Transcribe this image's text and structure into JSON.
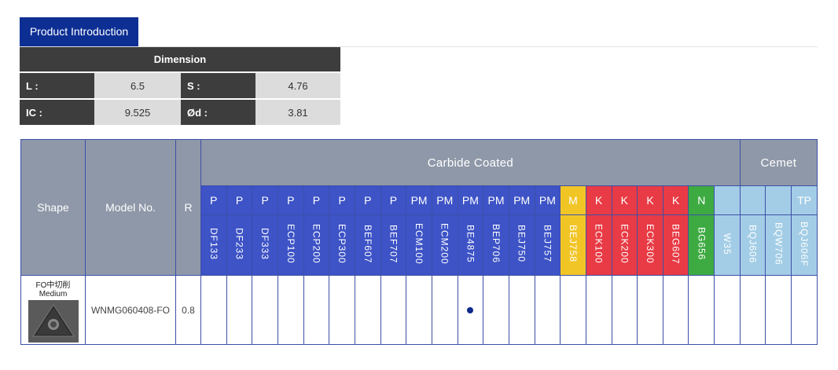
{
  "tab": {
    "label": "Product Introduction"
  },
  "dimension": {
    "title": "Dimension",
    "rows": [
      {
        "label1": "L :",
        "value1": "6.5",
        "label2": "S :",
        "value2": "4.76"
      },
      {
        "label1": "IC :",
        "value1": "9.525",
        "label2": "Ød :",
        "value2": "3.81"
      }
    ]
  },
  "grades": {
    "headers": {
      "shape": "Shape",
      "model": "Model No.",
      "r": "R",
      "carbide": "Carbide Coated",
      "cermet": "Cemet"
    },
    "columns": [
      {
        "cls": "P",
        "grade": "DF133",
        "color": "#3d53c6"
      },
      {
        "cls": "P",
        "grade": "DF233",
        "color": "#3d53c6"
      },
      {
        "cls": "P",
        "grade": "DF333",
        "color": "#3d53c6"
      },
      {
        "cls": "P",
        "grade": "ECP100",
        "color": "#3d53c6"
      },
      {
        "cls": "P",
        "grade": "ECP200",
        "color": "#3d53c6"
      },
      {
        "cls": "P",
        "grade": "ECP300",
        "color": "#3d53c6"
      },
      {
        "cls": "P",
        "grade": "BEF607",
        "color": "#3d53c6"
      },
      {
        "cls": "P",
        "grade": "BEF707",
        "color": "#3d53c6"
      },
      {
        "cls": "PM",
        "grade": "ECM100",
        "color": "#3d53c6"
      },
      {
        "cls": "PM",
        "grade": "ECM200",
        "color": "#3d53c6"
      },
      {
        "cls": "PM",
        "grade": "BE4875",
        "color": "#3d53c6"
      },
      {
        "cls": "PM",
        "grade": "BEP706",
        "color": "#3d53c6"
      },
      {
        "cls": "PM",
        "grade": "BEJ750",
        "color": "#3d53c6"
      },
      {
        "cls": "PM",
        "grade": "BEJ757",
        "color": "#3d53c6"
      },
      {
        "cls": "M",
        "grade": "BEJ758",
        "color": "#f2c527"
      },
      {
        "cls": "K",
        "grade": "ECK100",
        "color": "#e83b45"
      },
      {
        "cls": "K",
        "grade": "ECK200",
        "color": "#e83b45"
      },
      {
        "cls": "K",
        "grade": "ECK300",
        "color": "#e83b45"
      },
      {
        "cls": "K",
        "grade": "BEG607",
        "color": "#e83b45"
      },
      {
        "cls": "N",
        "grade": "BG656",
        "color": "#3eab42"
      },
      {
        "cls": "",
        "grade": "W35",
        "color": "#a3cde6"
      },
      {
        "cls": "",
        "grade": "BQJ606",
        "color": "#a3cde6"
      },
      {
        "cls": "",
        "grade": "BQW706",
        "color": "#a3cde6"
      },
      {
        "cls": "TP",
        "grade": "BQJ606F",
        "color": "#a3cde6"
      }
    ],
    "row": {
      "shape_title": "FO中切削",
      "shape_sub": "Medium",
      "model": "WNMG060408-FO",
      "r": "0.8",
      "marked_grade": "BE4875"
    }
  }
}
